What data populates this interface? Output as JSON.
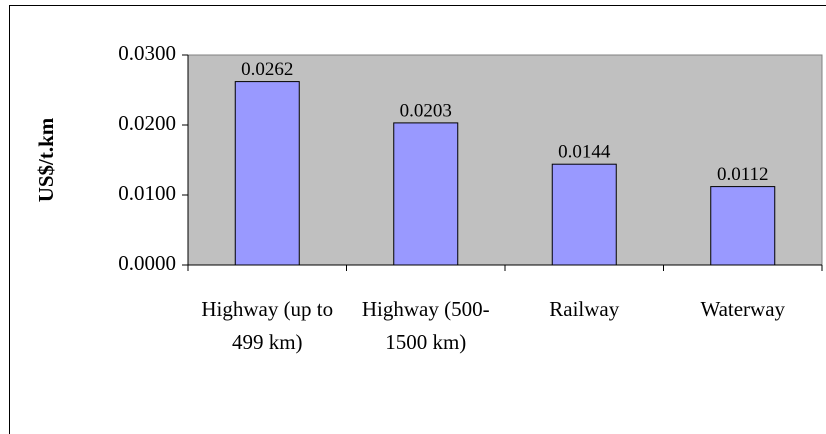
{
  "chart_data": {
    "type": "bar",
    "y_label": "US$/t.km",
    "categories": [
      "Highway (up to 499 km)",
      "Highway (500-1500 km)",
      "Railway",
      "Waterway"
    ],
    "values": [
      0.0262,
      0.0203,
      0.0144,
      0.0112
    ],
    "color": "#9999ff",
    "plot_background": "#c0c0c0",
    "ylim": [
      0,
      0.03
    ],
    "yticks": [
      {
        "value": 0,
        "label": "0.0000"
      },
      {
        "value": 0.01,
        "label": "0.0100"
      },
      {
        "value": 0.02,
        "label": "0.0200"
      },
      {
        "value": 0.03,
        "label": "0.0300"
      }
    ],
    "grid": false
  }
}
